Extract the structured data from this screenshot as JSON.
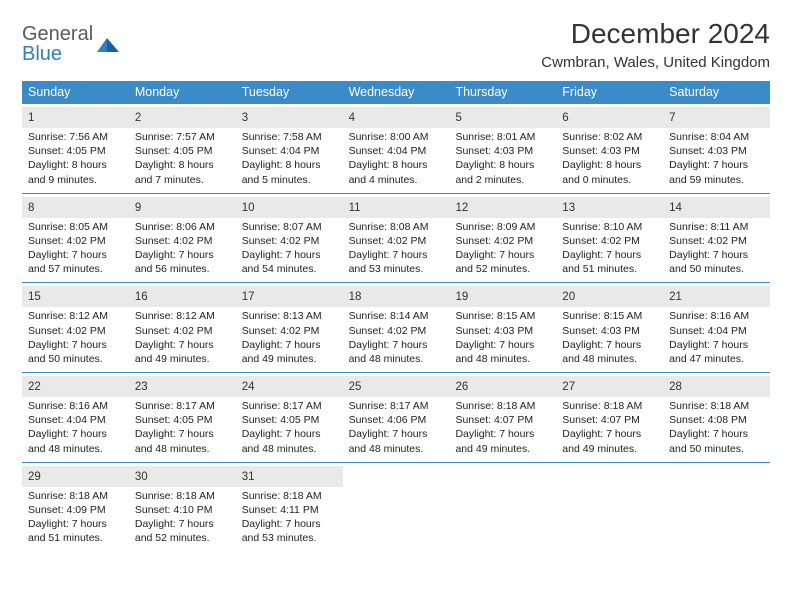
{
  "brand": {
    "top": "General",
    "bottom": "Blue"
  },
  "title": "December 2024",
  "subtitle": "Cwmbran, Wales, United Kingdom",
  "colors": {
    "header_bg": "#3b8bc9",
    "daynum_bg": "#e9e9e9",
    "rule": "#3b8bc9",
    "brand_blue": "#2f7fc2",
    "brand_gray": "#5a5a5a"
  },
  "weekdays": [
    "Sunday",
    "Monday",
    "Tuesday",
    "Wednesday",
    "Thursday",
    "Friday",
    "Saturday"
  ],
  "weeks": [
    [
      {
        "n": "1",
        "sr": "Sunrise: 7:56 AM",
        "ss": "Sunset: 4:05 PM",
        "d1": "Daylight: 8 hours",
        "d2": "and 9 minutes."
      },
      {
        "n": "2",
        "sr": "Sunrise: 7:57 AM",
        "ss": "Sunset: 4:05 PM",
        "d1": "Daylight: 8 hours",
        "d2": "and 7 minutes."
      },
      {
        "n": "3",
        "sr": "Sunrise: 7:58 AM",
        "ss": "Sunset: 4:04 PM",
        "d1": "Daylight: 8 hours",
        "d2": "and 5 minutes."
      },
      {
        "n": "4",
        "sr": "Sunrise: 8:00 AM",
        "ss": "Sunset: 4:04 PM",
        "d1": "Daylight: 8 hours",
        "d2": "and 4 minutes."
      },
      {
        "n": "5",
        "sr": "Sunrise: 8:01 AM",
        "ss": "Sunset: 4:03 PM",
        "d1": "Daylight: 8 hours",
        "d2": "and 2 minutes."
      },
      {
        "n": "6",
        "sr": "Sunrise: 8:02 AM",
        "ss": "Sunset: 4:03 PM",
        "d1": "Daylight: 8 hours",
        "d2": "and 0 minutes."
      },
      {
        "n": "7",
        "sr": "Sunrise: 8:04 AM",
        "ss": "Sunset: 4:03 PM",
        "d1": "Daylight: 7 hours",
        "d2": "and 59 minutes."
      }
    ],
    [
      {
        "n": "8",
        "sr": "Sunrise: 8:05 AM",
        "ss": "Sunset: 4:02 PM",
        "d1": "Daylight: 7 hours",
        "d2": "and 57 minutes."
      },
      {
        "n": "9",
        "sr": "Sunrise: 8:06 AM",
        "ss": "Sunset: 4:02 PM",
        "d1": "Daylight: 7 hours",
        "d2": "and 56 minutes."
      },
      {
        "n": "10",
        "sr": "Sunrise: 8:07 AM",
        "ss": "Sunset: 4:02 PM",
        "d1": "Daylight: 7 hours",
        "d2": "and 54 minutes."
      },
      {
        "n": "11",
        "sr": "Sunrise: 8:08 AM",
        "ss": "Sunset: 4:02 PM",
        "d1": "Daylight: 7 hours",
        "d2": "and 53 minutes."
      },
      {
        "n": "12",
        "sr": "Sunrise: 8:09 AM",
        "ss": "Sunset: 4:02 PM",
        "d1": "Daylight: 7 hours",
        "d2": "and 52 minutes."
      },
      {
        "n": "13",
        "sr": "Sunrise: 8:10 AM",
        "ss": "Sunset: 4:02 PM",
        "d1": "Daylight: 7 hours",
        "d2": "and 51 minutes."
      },
      {
        "n": "14",
        "sr": "Sunrise: 8:11 AM",
        "ss": "Sunset: 4:02 PM",
        "d1": "Daylight: 7 hours",
        "d2": "and 50 minutes."
      }
    ],
    [
      {
        "n": "15",
        "sr": "Sunrise: 8:12 AM",
        "ss": "Sunset: 4:02 PM",
        "d1": "Daylight: 7 hours",
        "d2": "and 50 minutes."
      },
      {
        "n": "16",
        "sr": "Sunrise: 8:12 AM",
        "ss": "Sunset: 4:02 PM",
        "d1": "Daylight: 7 hours",
        "d2": "and 49 minutes."
      },
      {
        "n": "17",
        "sr": "Sunrise: 8:13 AM",
        "ss": "Sunset: 4:02 PM",
        "d1": "Daylight: 7 hours",
        "d2": "and 49 minutes."
      },
      {
        "n": "18",
        "sr": "Sunrise: 8:14 AM",
        "ss": "Sunset: 4:02 PM",
        "d1": "Daylight: 7 hours",
        "d2": "and 48 minutes."
      },
      {
        "n": "19",
        "sr": "Sunrise: 8:15 AM",
        "ss": "Sunset: 4:03 PM",
        "d1": "Daylight: 7 hours",
        "d2": "and 48 minutes."
      },
      {
        "n": "20",
        "sr": "Sunrise: 8:15 AM",
        "ss": "Sunset: 4:03 PM",
        "d1": "Daylight: 7 hours",
        "d2": "and 48 minutes."
      },
      {
        "n": "21",
        "sr": "Sunrise: 8:16 AM",
        "ss": "Sunset: 4:04 PM",
        "d1": "Daylight: 7 hours",
        "d2": "and 47 minutes."
      }
    ],
    [
      {
        "n": "22",
        "sr": "Sunrise: 8:16 AM",
        "ss": "Sunset: 4:04 PM",
        "d1": "Daylight: 7 hours",
        "d2": "and 48 minutes."
      },
      {
        "n": "23",
        "sr": "Sunrise: 8:17 AM",
        "ss": "Sunset: 4:05 PM",
        "d1": "Daylight: 7 hours",
        "d2": "and 48 minutes."
      },
      {
        "n": "24",
        "sr": "Sunrise: 8:17 AM",
        "ss": "Sunset: 4:05 PM",
        "d1": "Daylight: 7 hours",
        "d2": "and 48 minutes."
      },
      {
        "n": "25",
        "sr": "Sunrise: 8:17 AM",
        "ss": "Sunset: 4:06 PM",
        "d1": "Daylight: 7 hours",
        "d2": "and 48 minutes."
      },
      {
        "n": "26",
        "sr": "Sunrise: 8:18 AM",
        "ss": "Sunset: 4:07 PM",
        "d1": "Daylight: 7 hours",
        "d2": "and 49 minutes."
      },
      {
        "n": "27",
        "sr": "Sunrise: 8:18 AM",
        "ss": "Sunset: 4:07 PM",
        "d1": "Daylight: 7 hours",
        "d2": "and 49 minutes."
      },
      {
        "n": "28",
        "sr": "Sunrise: 8:18 AM",
        "ss": "Sunset: 4:08 PM",
        "d1": "Daylight: 7 hours",
        "d2": "and 50 minutes."
      }
    ],
    [
      {
        "n": "29",
        "sr": "Sunrise: 8:18 AM",
        "ss": "Sunset: 4:09 PM",
        "d1": "Daylight: 7 hours",
        "d2": "and 51 minutes."
      },
      {
        "n": "30",
        "sr": "Sunrise: 8:18 AM",
        "ss": "Sunset: 4:10 PM",
        "d1": "Daylight: 7 hours",
        "d2": "and 52 minutes."
      },
      {
        "n": "31",
        "sr": "Sunrise: 8:18 AM",
        "ss": "Sunset: 4:11 PM",
        "d1": "Daylight: 7 hours",
        "d2": "and 53 minutes."
      },
      null,
      null,
      null,
      null
    ]
  ]
}
